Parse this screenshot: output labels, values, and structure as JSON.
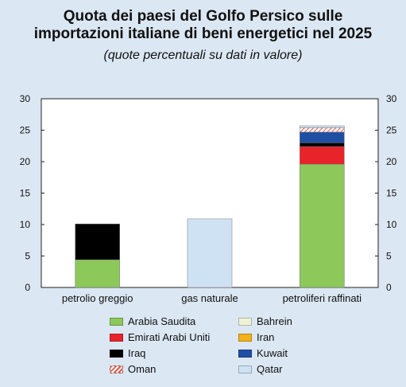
{
  "chart_data": {
    "type": "bar",
    "stacked": true,
    "title_line1": "Quota dei paesi del Golfo Persico sulle",
    "title_line2": "importazioni italiane di beni energetici nel 2025",
    "subtitle": "(quote percentuali su dati in valore)",
    "categories": [
      "petrolio greggio",
      "gas naturale",
      "petroliferi raffinati"
    ],
    "ylim": [
      0,
      30
    ],
    "yticks": [
      "0",
      "5",
      "10",
      "15",
      "20",
      "25",
      "30"
    ],
    "grid": false,
    "legend_position": "bottom",
    "series": [
      {
        "name": "Arabia Saudita",
        "color": "#8cc85a",
        "values": [
          4.4,
          0,
          19.6
        ]
      },
      {
        "name": "Bahrein",
        "color": "#eef3d6",
        "values": [
          0,
          0,
          0
        ]
      },
      {
        "name": "Emirati Arabi Uniti",
        "color": "#e8232a",
        "values": [
          0,
          0,
          2.8
        ]
      },
      {
        "name": "Iran",
        "color": "#f3b21b",
        "values": [
          0,
          0,
          0
        ]
      },
      {
        "name": "Iraq",
        "color": "#000000",
        "values": [
          5.7,
          0,
          0.6
        ]
      },
      {
        "name": "Kuwait",
        "color": "#1f4fa3",
        "values": [
          0,
          0,
          1.7
        ]
      },
      {
        "name": "Oman",
        "color": "hatch",
        "values": [
          0,
          0,
          0.7
        ]
      },
      {
        "name": "Qatar",
        "color": "#cfe2f3",
        "values": [
          0,
          10.9,
          0.3
        ]
      }
    ]
  }
}
